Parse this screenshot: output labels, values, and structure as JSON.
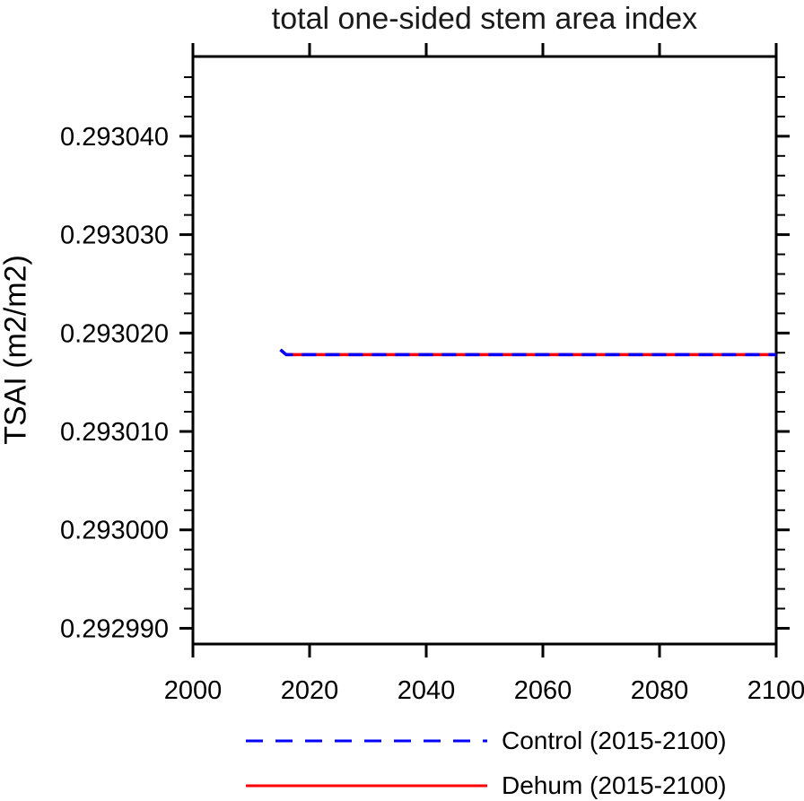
{
  "chart_data": {
    "type": "line",
    "title": "total one-sided stem area index",
    "xlabel": "",
    "ylabel": "TSAI  (m2/m2)",
    "xlim": [
      2000,
      2100
    ],
    "ylim": [
      0.2929884,
      0.2930481
    ],
    "xticks": [
      2000,
      2020,
      2040,
      2060,
      2080,
      2100
    ],
    "xtick_labels": [
      "2000",
      "2020",
      "2040",
      "2060",
      "2080",
      "2100"
    ],
    "yticks": [
      0.29299,
      0.293,
      0.29301,
      0.29302,
      0.29303,
      0.29304
    ],
    "ytick_labels": [
      "0.292990",
      "0.293000",
      "0.293010",
      "0.293020",
      "0.293030",
      "0.293040"
    ],
    "y_minor_step": 2e-06,
    "grid": false,
    "legend_position": "bottom",
    "axis_color": "#000000",
    "series": [
      {
        "name": "Control (2015-2100)",
        "color": "#0000ff",
        "line_style": "dashed",
        "x": [
          2015,
          2016,
          2020,
          2040,
          2060,
          2080,
          2100
        ],
        "y": [
          0.2930183,
          0.2930178,
          0.2930178,
          0.2930178,
          0.2930178,
          0.2930178,
          0.2930178
        ]
      },
      {
        "name": "Dehum (2015-2100)",
        "color": "#ff0000",
        "line_style": "solid",
        "x": [
          2015,
          2016,
          2020,
          2040,
          2060,
          2080,
          2100
        ],
        "y": [
          0.2930183,
          0.2930178,
          0.2930178,
          0.2930178,
          0.2930178,
          0.2930178,
          0.2930178
        ]
      }
    ]
  }
}
